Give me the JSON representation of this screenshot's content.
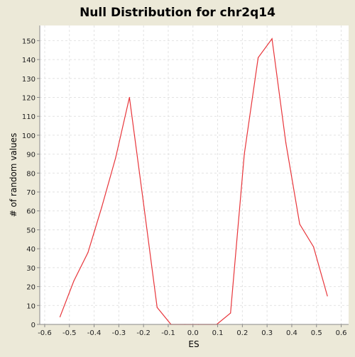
{
  "chart_data": {
    "type": "line",
    "title": "Null Distribution for chr2q14",
    "xlabel": "ES",
    "ylabel": "# of random values",
    "xlim": [
      -0.62,
      0.63
    ],
    "ylim": [
      0,
      158
    ],
    "x_ticks": [
      -0.6,
      -0.5,
      -0.4,
      -0.3,
      -0.2,
      -0.1,
      0.0,
      0.1,
      0.2,
      0.3,
      0.4,
      0.5,
      0.6
    ],
    "x_tick_labels": [
      "-0.6",
      "-0.5",
      "-0.4",
      "-0.3",
      "-0.2",
      "-0.1",
      "0.0",
      "0.1",
      "0.2",
      "0.3",
      "0.4",
      "0.5",
      "0.6"
    ],
    "y_ticks": [
      0,
      10,
      20,
      30,
      40,
      50,
      60,
      70,
      80,
      90,
      100,
      110,
      120,
      130,
      140,
      150
    ],
    "y_tick_labels": [
      "0",
      "10",
      "20",
      "30",
      "40",
      "50",
      "60",
      "70",
      "80",
      "90",
      "100",
      "110",
      "120",
      "130",
      "140",
      "150"
    ],
    "grid": true,
    "series": [
      {
        "color": "#E8353A",
        "x": [
          -0.538,
          -0.482,
          -0.425,
          -0.369,
          -0.313,
          -0.257,
          -0.201,
          -0.145,
          -0.089,
          -0.033,
          0.023,
          0.096,
          0.152,
          0.208,
          0.264,
          0.32,
          0.376,
          0.432,
          0.488,
          0.544
        ],
        "y": [
          4,
          23,
          38,
          62,
          88,
          120,
          65,
          9,
          0,
          0,
          0,
          0,
          6,
          90,
          141,
          151,
          96,
          53,
          41,
          15
        ]
      }
    ]
  }
}
